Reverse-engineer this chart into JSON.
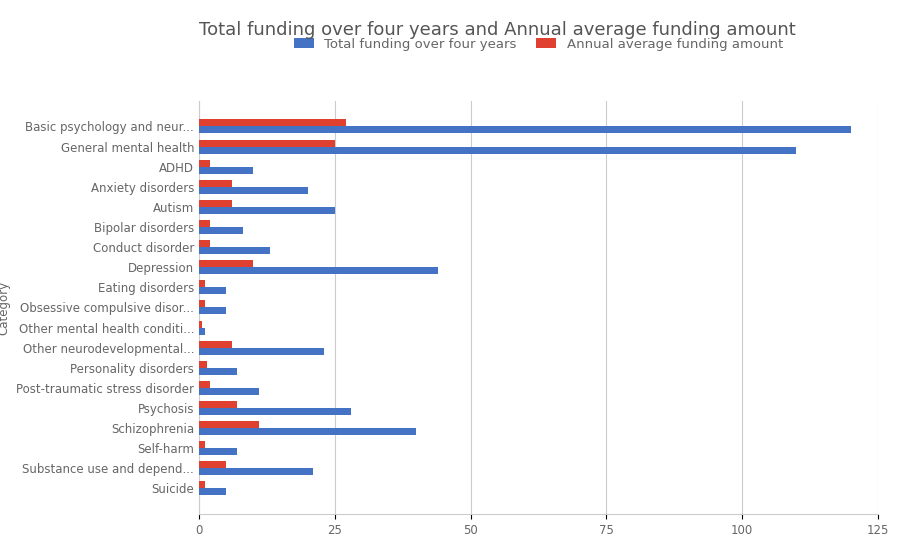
{
  "title": "Total funding over four years and Annual average funding amount",
  "xlabel": "",
  "ylabel": "Category",
  "categories": [
    "Basic psychology and neur...",
    "General mental health",
    "ADHD",
    "Anxiety disorders",
    "Autism",
    "Bipolar disorders",
    "Conduct disorder",
    "Depression",
    "Eating disorders",
    "Obsessive compulsive disor...",
    "Other mental health conditi...",
    "Other neurodevelopmental...",
    "Personality disorders",
    "Post-traumatic stress disorder",
    "Psychosis",
    "Schizophrenia",
    "Self-harm",
    "Substance use and depend...",
    "Suicide"
  ],
  "total_funding": [
    120,
    110,
    10,
    20,
    25,
    8,
    13,
    44,
    5,
    5,
    1,
    23,
    7,
    11,
    28,
    40,
    7,
    21,
    5
  ],
  "annual_avg": [
    27,
    25,
    2,
    6,
    6,
    2,
    2,
    10,
    1,
    1,
    0.5,
    6,
    1.5,
    2,
    7,
    11,
    1,
    5,
    1
  ],
  "blue_color": "#4472C4",
  "red_color": "#E04030",
  "background_color": "#FFFFFF",
  "grid_color": "#CCCCCC",
  "title_color": "#555555",
  "axis_label_color": "#666666",
  "legend_labels": [
    "Total funding over four years",
    "Annual average funding amount"
  ],
  "xlim": [
    0,
    125
  ],
  "xticks": [
    0,
    25,
    50,
    75,
    100,
    125
  ],
  "bar_height": 0.35,
  "title_fontsize": 13,
  "tick_fontsize": 8.5,
  "legend_fontsize": 9.5
}
